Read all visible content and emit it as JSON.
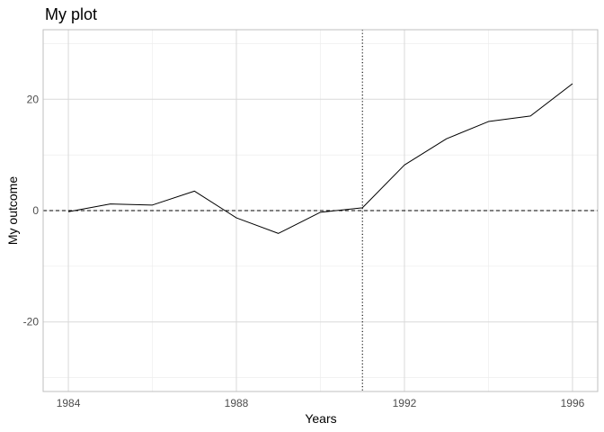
{
  "chart_data": {
    "type": "line",
    "title": "My plot",
    "xlabel": "Years",
    "ylabel": "My outcome",
    "xlim": [
      1983.4,
      1996.6
    ],
    "ylim": [
      -32.5,
      32.5
    ],
    "x_ticks": [
      1984,
      1988,
      1992,
      1996
    ],
    "y_ticks": [
      -20,
      0,
      20
    ],
    "x_minor_grid": [
      1986,
      1990,
      1994
    ],
    "y_minor_grid": [
      -30,
      -10,
      10,
      30
    ],
    "grid": true,
    "legend": "none",
    "series": [
      {
        "x": [
          1984,
          1985,
          1986,
          1987,
          1988,
          1989,
          1990,
          1991,
          1992,
          1993,
          1994,
          1995,
          1996
        ],
        "values": [
          -0.2,
          1.2,
          1.0,
          3.5,
          -1.3,
          -4.1,
          -0.3,
          0.5,
          8.2,
          12.9,
          16.0,
          17.0,
          22.8
        ]
      }
    ],
    "reference_lines": [
      {
        "orientation": "horizontal",
        "value": 0,
        "style": "dashed"
      },
      {
        "orientation": "vertical",
        "value": 1991,
        "style": "dotted"
      }
    ],
    "colors": {
      "line": "#000000",
      "grid_major": "#d9d9d9",
      "grid_minor": "#ebebeb",
      "panel_border": "#bfbfbf",
      "tick_label": "#4d4d4d"
    }
  }
}
